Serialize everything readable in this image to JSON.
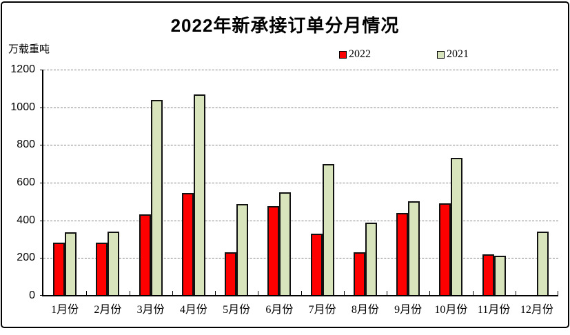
{
  "chart": {
    "frame_border_color": "#000000",
    "background_color": "#ffffff",
    "gridline_color": "#7f7f7f",
    "bar_border_color": "#111111"
  },
  "chart_data": {
    "type": "bar",
    "title": "2022年新承接订单分月情况",
    "ylabel": "万载重吨",
    "xlabel": "",
    "categories": [
      "1月份",
      "2月份",
      "3月份",
      "4月份",
      "5月份",
      "6月份",
      "7月份",
      "8月份",
      "9月份",
      "10月份",
      "11月份",
      "12月份"
    ],
    "series": [
      {
        "name": "2022",
        "color": "#ff0000",
        "values": [
          283,
          283,
          430,
          547,
          230,
          475,
          328,
          232,
          438,
          492,
          220,
          0
        ]
      },
      {
        "name": "2021",
        "color": "#d8e4bc",
        "values": [
          337,
          341,
          1040,
          1067,
          488,
          550,
          700,
          388,
          500,
          731,
          214,
          342
        ]
      }
    ],
    "ylim": [
      0,
      1200
    ],
    "ytick_step": 200,
    "ytick_labels": [
      "0",
      "200",
      "400",
      "600",
      "800",
      "1000",
      "1200"
    ],
    "grid": true,
    "legend_position": "top"
  }
}
